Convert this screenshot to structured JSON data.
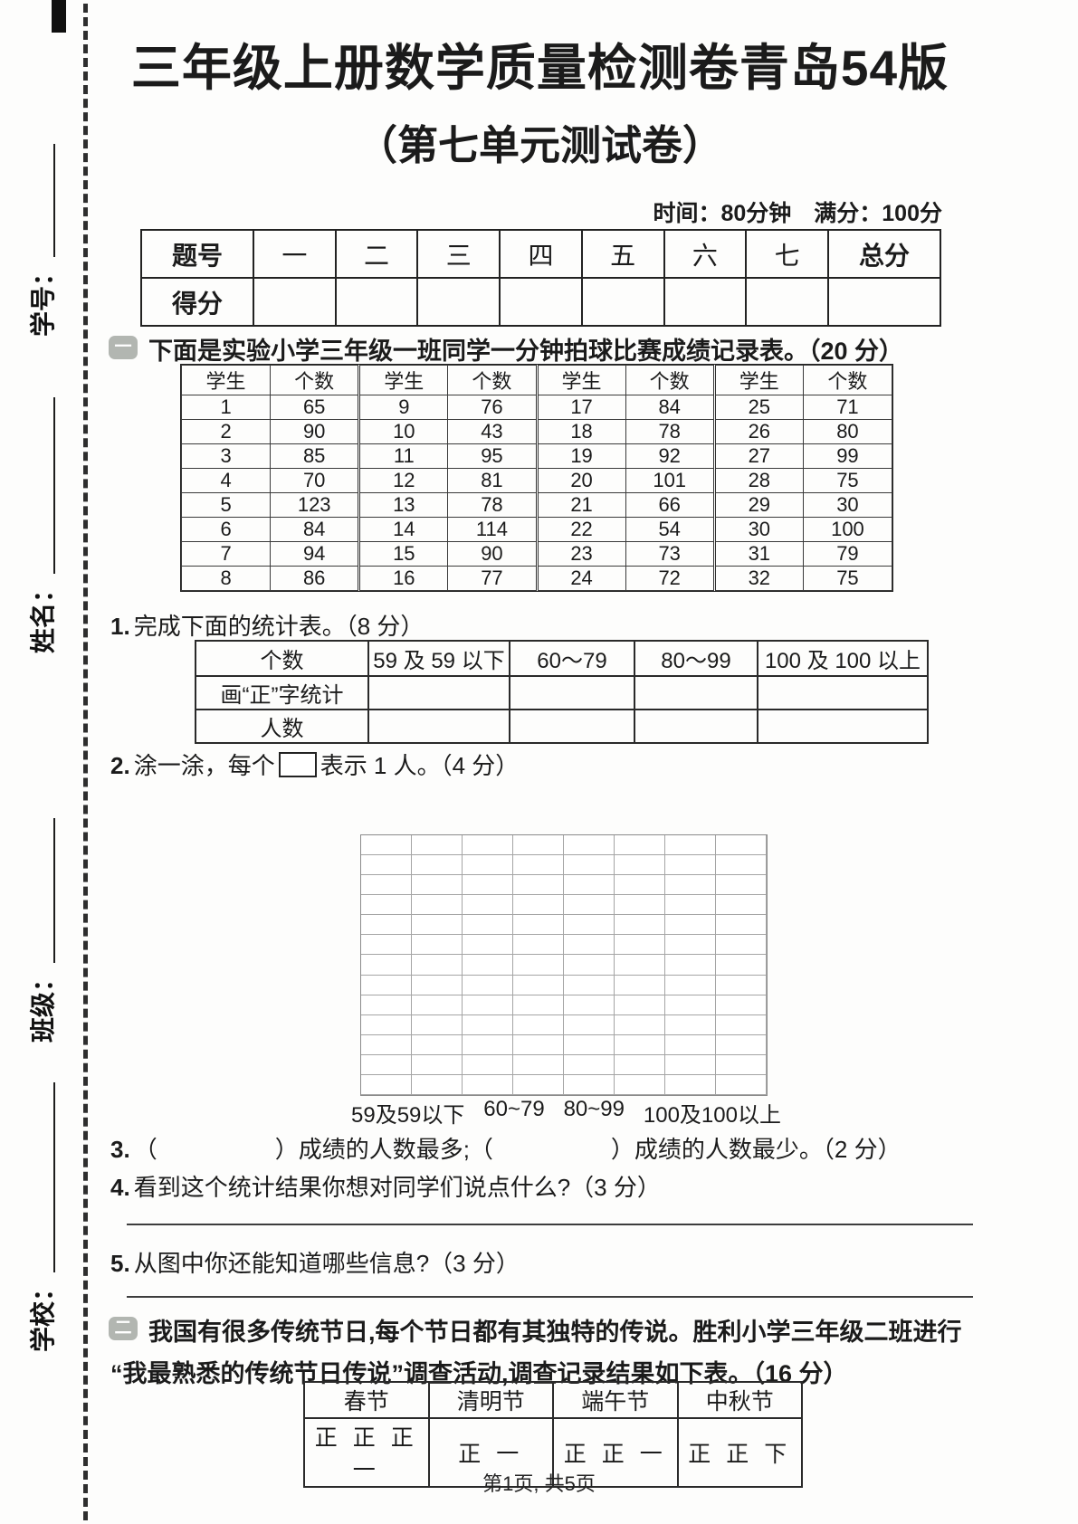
{
  "page": {
    "title": "三年级上册数学质量检测卷青岛54版",
    "subtitle": "（第七单元测试卷）",
    "meta": "时间：80分钟　满分：100分",
    "footer": "第1页, 共5页"
  },
  "margin_fields": {
    "student_id": "学号：",
    "name": "姓名：",
    "class": "班级：",
    "school": "学校："
  },
  "score_table": {
    "headers": [
      "题号",
      "一",
      "二",
      "三",
      "四",
      "五",
      "六",
      "七",
      "总分"
    ],
    "row_label": "得分"
  },
  "section1": {
    "badge": "一",
    "intro": "下面是实验小学三年级一班同学一分钟拍球比赛成绩记录表。（20 分）",
    "record_table": {
      "header": [
        "学生",
        "个数",
        "学生",
        "个数",
        "学生",
        "个数",
        "学生",
        "个数"
      ],
      "rows": [
        [
          "1",
          "65",
          "9",
          "76",
          "17",
          "84",
          "25",
          "71"
        ],
        [
          "2",
          "90",
          "10",
          "43",
          "18",
          "78",
          "26",
          "80"
        ],
        [
          "3",
          "85",
          "11",
          "95",
          "19",
          "92",
          "27",
          "99"
        ],
        [
          "4",
          "70",
          "12",
          "81",
          "20",
          "101",
          "28",
          "75"
        ],
        [
          "5",
          "123",
          "13",
          "78",
          "21",
          "66",
          "29",
          "30"
        ],
        [
          "6",
          "84",
          "14",
          "114",
          "22",
          "54",
          "30",
          "100"
        ],
        [
          "7",
          "94",
          "15",
          "90",
          "23",
          "73",
          "31",
          "79"
        ],
        [
          "8",
          "86",
          "16",
          "77",
          "24",
          "72",
          "32",
          "75"
        ]
      ]
    },
    "q1": {
      "label": "1.",
      "text": "完成下面的统计表。（8 分）",
      "stats_table": {
        "header": [
          "个数",
          "59 及 59 以下",
          "60～79",
          "80～99",
          "100 及 100 以上"
        ],
        "row1_label": "画“正”字统计",
        "row2_label": "人数"
      }
    },
    "q2": {
      "label": "2.",
      "text_before": "涂一涂，每个",
      "text_after": "表示 1 人。（4 分）",
      "grid": {
        "rows": 13,
        "cols": 8
      },
      "axis_labels": [
        "59及59以下",
        "60~79",
        "80~99",
        "100及100以上"
      ]
    },
    "q3": {
      "label": "3.",
      "text": "（　　　　　）成绩的人数最多;（　　　　　）成绩的人数最少。（2 分）"
    },
    "q4": {
      "label": "4.",
      "text": "看到这个统计结果你想对同学们说点什么?（3 分）"
    },
    "q5": {
      "label": "5.",
      "text": "从图中你还能知道哪些信息?（3 分）"
    }
  },
  "section2": {
    "badge": "二",
    "intro_line1": "我国有很多传统节日,每个节日都有其独特的传说。胜利小学三年级二班进行",
    "intro_line2": "“我最熟悉的传统节日传说”调查活动,调查记录结果如下表。（16 分）",
    "festival_table": {
      "header": [
        "春节",
        "清明节",
        "端午节",
        "中秋节"
      ],
      "tallies": [
        "正 正 正 一",
        "正 一",
        "正 正 一",
        "正 正 下"
      ]
    }
  },
  "colors": {
    "badge": "#b2b6b1",
    "ink": "#1b1b1b",
    "grid_line": "#a5a5a5"
  }
}
